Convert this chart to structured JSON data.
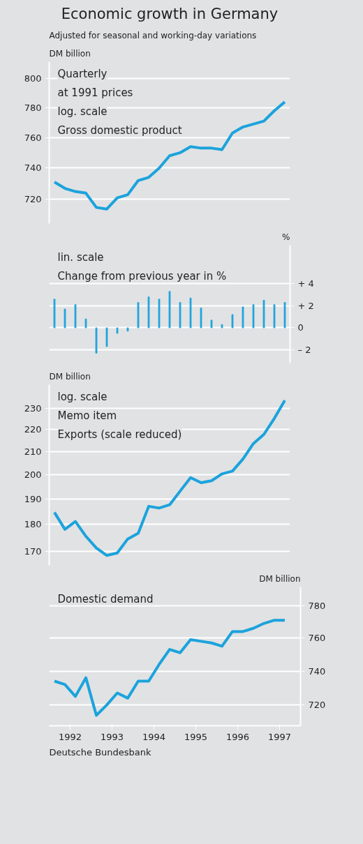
{
  "chart_data": [
    {
      "type": "line",
      "title": "Economic growth in Germany",
      "subtitle": "Adjusted for seasonal and working-day variations",
      "ylabel": "DM billion",
      "log": true,
      "grid": "y",
      "tick_labels": "y",
      "annotations": [
        "Quarterly",
        "at 1991 prices",
        "log. scale"
      ],
      "categories": [
        null,
        null,
        null,
        null,
        null,
        null,
        null,
        null,
        null,
        null,
        null,
        null,
        null,
        null,
        null,
        null,
        null,
        null,
        null,
        null,
        null,
        null,
        null
      ],
      "series": [
        {
          "name": "Gross domestic product",
          "color": "#1ba3dc",
          "values": [
            731,
            727,
            725,
            724,
            715,
            714,
            721,
            723,
            732,
            734,
            740,
            748,
            750,
            754,
            753,
            753,
            752,
            763,
            767,
            769,
            771,
            778,
            784
          ]
        }
      ],
      "ylim": [
        705,
        812
      ],
      "yticks": [
        720,
        740,
        760,
        780,
        800
      ]
    },
    {
      "type": "bar",
      "y2label": "%",
      "grid": "y",
      "tick_labels": "y",
      "annotations": [
        "lin. scale",
        "Change from  previous year in %"
      ],
      "categories": [
        null,
        null,
        null,
        null,
        null,
        null,
        null,
        null,
        null,
        null,
        null,
        null,
        null,
        null,
        null,
        null,
        null,
        null,
        null,
        null,
        null,
        null,
        null
      ],
      "series": [
        {
          "color": "#1ba3dc",
          "axis": "y2",
          "values": [
            2.6,
            1.7,
            2.1,
            0.8,
            -2.3,
            -1.7,
            -0.5,
            -0.3,
            2.3,
            2.8,
            2.6,
            3.3,
            2.3,
            2.7,
            1.8,
            0.7,
            0.3,
            1.2,
            1.9,
            2.1,
            2.5,
            2.1,
            2.3
          ]
        }
      ],
      "y2lim": [
        -3.2,
        7.5
      ],
      "y2ticks": [
        {
          "value": -2,
          "label": "– 2"
        },
        0,
        {
          "value": 2,
          "label": "+ 2"
        },
        {
          "value": 4,
          "label": "+ 4"
        }
      ]
    },
    {
      "type": "line",
      "ylabel": "DM billion",
      "log": true,
      "grid": "y",
      "tick_labels": "y",
      "annotations": [
        "log. scale",
        "Memo item"
      ],
      "categories": [
        null,
        null,
        null,
        null,
        null,
        null,
        null,
        null,
        null,
        null,
        null,
        null,
        null,
        null,
        null,
        null,
        null,
        null,
        null,
        null,
        null,
        null,
        null
      ],
      "series": [
        {
          "name": "Exports (scale reduced)",
          "color": "#1ba3dc",
          "values": [
            184.6,
            178.1,
            181.1,
            175.5,
            171.2,
            168.5,
            169.4,
            174.5,
            176.6,
            187.0,
            186.3,
            187.6,
            193.1,
            198.7,
            196.6,
            197.4,
            200.3,
            201.5,
            206.7,
            213.6,
            217.8,
            225.3,
            234.1
          ]
        }
      ],
      "ylim": [
        165,
        242
      ],
      "yticks": [
        170,
        180,
        190,
        200,
        210,
        220,
        230
      ]
    },
    {
      "type": "line",
      "y2label": "DM billion",
      "log": true,
      "grid": "y",
      "annotations": [
        "Deutsche Bundesbank"
      ],
      "x": [
        1992.125,
        1992.375,
        1992.625,
        1992.875,
        1993.125,
        1993.375,
        1993.625,
        1993.875,
        1994.125,
        1994.375,
        1994.625,
        1994.875,
        1995.125,
        1995.375,
        1995.625,
        1995.875,
        1996.125,
        1996.375,
        1996.625,
        1996.875,
        1997.125,
        1997.375,
        1997.625
      ],
      "series": [
        {
          "name": "Domestic demand",
          "color": "#1ba3dc",
          "axis": "y2",
          "values": [
            734,
            732,
            725,
            736,
            714,
            720,
            727,
            724,
            734,
            734,
            744,
            753,
            751,
            759,
            758,
            757,
            755,
            764,
            764,
            766,
            769,
            771,
            771
          ]
        }
      ],
      "xlim": [
        1992,
        1998
      ],
      "xticks": [
        {
          "value": 1992.5,
          "label": "1992"
        },
        {
          "value": 1993.5,
          "label": "1993"
        },
        {
          "value": 1994.5,
          "label": "1994"
        },
        {
          "value": 1995.5,
          "label": "1995"
        },
        {
          "value": 1996.5,
          "label": "1996"
        },
        {
          "value": 1997.5,
          "label": "1997"
        }
      ],
      "y2lim": [
        708,
        792
      ],
      "y2ticks": [
        720,
        740,
        760,
        780
      ]
    }
  ]
}
